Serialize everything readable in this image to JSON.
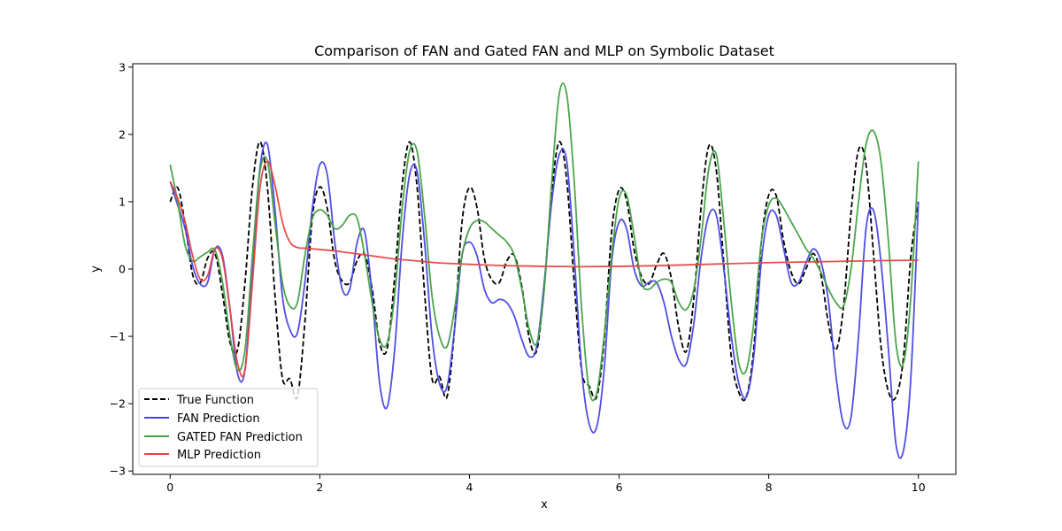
{
  "chart_data": {
    "type": "line",
    "title": "Comparison of FAN and Gated FAN and MLP on Symbolic Dataset",
    "xlabel": "x",
    "ylabel": "y",
    "xlim": [
      -0.5,
      10.5
    ],
    "ylim": [
      -3.05,
      3.05
    ],
    "xticks": [
      0,
      2,
      4,
      6,
      8,
      10
    ],
    "xtick_labels": [
      "0",
      "2",
      "4",
      "6",
      "8",
      "10"
    ],
    "yticks": [
      -3,
      -2,
      -1,
      0,
      1,
      2,
      3
    ],
    "ytick_labels": [
      "−3",
      "−2",
      "−1",
      "0",
      "1",
      "2",
      "3"
    ],
    "grid": false,
    "legend_position": "lower-left",
    "series": [
      {
        "name": "True Function",
        "color": "#000000",
        "dash": "dashed",
        "x": [
          0,
          0.1,
          0.2,
          0.3,
          0.4,
          0.5,
          0.6,
          0.7,
          0.8,
          0.9,
          1.0,
          1.1,
          1.2,
          1.3,
          1.4,
          1.5,
          1.6,
          1.7,
          1.8,
          1.9,
          2.0,
          2.1,
          2.2,
          2.3,
          2.4,
          2.5,
          2.6,
          2.7,
          2.8,
          2.9,
          3.0,
          3.1,
          3.2,
          3.3,
          3.4,
          3.5,
          3.6,
          3.7,
          3.8,
          3.9,
          4.0,
          4.1,
          4.2,
          4.3,
          4.4,
          4.5,
          4.6,
          4.7,
          4.8,
          4.9,
          5.0,
          5.1,
          5.2,
          5.3,
          5.4,
          5.5,
          5.6,
          5.7,
          5.8,
          5.9,
          6.0,
          6.1,
          6.2,
          6.3,
          6.4,
          6.5,
          6.6,
          6.7,
          6.8,
          6.9,
          7.0,
          7.1,
          7.2,
          7.3,
          7.4,
          7.5,
          7.6,
          7.7,
          7.8,
          7.9,
          8.0,
          8.1,
          8.2,
          8.3,
          8.4,
          8.5,
          8.6,
          8.7,
          8.8,
          8.9,
          9.0,
          9.1,
          9.2,
          9.3,
          9.4,
          9.5,
          9.6,
          9.7,
          9.8,
          9.9,
          10.0
        ],
        "values": [
          1.0,
          1.21,
          0.67,
          -0.08,
          -0.21,
          0.16,
          0.23,
          -0.37,
          -1.09,
          -1.2,
          -0.2,
          1.22,
          1.89,
          1.21,
          -0.38,
          -1.62,
          -1.63,
          -1.9,
          -0.8,
          0.77,
          1.22,
          0.9,
          0.12,
          -0.18,
          -0.2,
          0.13,
          0.22,
          -0.3,
          -1.1,
          -1.18,
          -0.13,
          1.24,
          1.89,
          1.22,
          -0.35,
          -1.63,
          -1.6,
          -1.9,
          -0.9,
          0.69,
          1.21,
          0.92,
          0.15,
          -0.16,
          -0.2,
          0.12,
          0.2,
          -0.26,
          -1.03,
          -1.21,
          -0.25,
          1.15,
          1.89,
          1.32,
          -0.2,
          -1.51,
          -1.74,
          -1.9,
          -1.07,
          0.55,
          1.18,
          1.02,
          0.29,
          -0.11,
          -0.22,
          0.06,
          0.23,
          -0.15,
          -0.89,
          -1.22,
          -0.42,
          0.97,
          1.83,
          1.46,
          0.07,
          -1.31,
          -1.83,
          -1.9,
          -1.18,
          0.39,
          1.1,
          1.09,
          0.41,
          -0.05,
          -0.22,
          0.01,
          0.23,
          -0.1,
          -0.82,
          -1.2,
          -0.55,
          0.84,
          1.77,
          1.55,
          0.23,
          -1.15,
          -1.82,
          -1.9,
          -1.32,
          0.19,
          1.0
        ]
      },
      {
        "name": "FAN Prediction",
        "color": "#4444e6",
        "dash": "solid",
        "x": [
          0,
          0.1,
          0.2,
          0.3,
          0.4,
          0.5,
          0.6,
          0.7,
          0.8,
          0.9,
          1.0,
          1.1,
          1.2,
          1.3,
          1.4,
          1.5,
          1.6,
          1.7,
          1.8,
          1.9,
          2.0,
          2.1,
          2.2,
          2.3,
          2.4,
          2.5,
          2.6,
          2.7,
          2.8,
          2.9,
          3.0,
          3.1,
          3.2,
          3.3,
          3.4,
          3.5,
          3.6,
          3.7,
          3.8,
          3.9,
          4.0,
          4.1,
          4.2,
          4.3,
          4.4,
          4.5,
          4.6,
          4.7,
          4.8,
          4.9,
          5.0,
          5.1,
          5.2,
          5.3,
          5.4,
          5.5,
          5.6,
          5.7,
          5.8,
          5.9,
          6.0,
          6.1,
          6.2,
          6.3,
          6.4,
          6.5,
          6.6,
          6.7,
          6.8,
          6.9,
          7.0,
          7.1,
          7.2,
          7.3,
          7.4,
          7.5,
          7.6,
          7.7,
          7.8,
          7.9,
          8.0,
          8.1,
          8.2,
          8.3,
          8.4,
          8.5,
          8.6,
          8.7,
          8.8,
          8.9,
          9.0,
          9.1,
          9.2,
          9.3,
          9.4,
          9.5,
          9.6,
          9.7,
          9.8,
          9.9,
          10.0
        ],
        "values": [
          1.3,
          0.95,
          0.6,
          0.05,
          -0.22,
          -0.2,
          0.3,
          0.2,
          -0.6,
          -1.55,
          -1.5,
          0.0,
          1.5,
          1.85,
          0.9,
          -0.4,
          -0.9,
          -0.95,
          -0.2,
          0.9,
          1.55,
          1.4,
          0.4,
          -0.3,
          -0.3,
          0.4,
          0.55,
          -0.4,
          -1.7,
          -2.05,
          -1.2,
          0.4,
          1.4,
          1.45,
          0.4,
          -1.0,
          -1.7,
          -1.75,
          -0.9,
          0.2,
          0.4,
          0.2,
          -0.3,
          -0.5,
          -0.45,
          -0.5,
          -0.7,
          -1.05,
          -1.3,
          -1.15,
          -0.2,
          1.0,
          1.7,
          1.6,
          0.2,
          -1.5,
          -2.3,
          -2.35,
          -1.5,
          0.1,
          0.7,
          0.6,
          0.0,
          -0.25,
          -0.2,
          -0.2,
          -0.5,
          -1.0,
          -1.35,
          -1.4,
          -0.8,
          0.2,
          0.8,
          0.8,
          0.0,
          -1.0,
          -1.7,
          -1.9,
          -1.3,
          0.1,
          0.8,
          0.8,
          0.3,
          -0.2,
          -0.2,
          0.1,
          0.3,
          0.1,
          -0.5,
          -1.6,
          -2.3,
          -2.2,
          -1.0,
          0.6,
          0.87,
          0.1,
          -1.2,
          -2.6,
          -2.7,
          -1.6,
          1.0
        ]
      },
      {
        "name": "GATED FAN Prediction",
        "color": "#43a043",
        "dash": "solid",
        "x": [
          0,
          0.1,
          0.2,
          0.3,
          0.4,
          0.5,
          0.6,
          0.7,
          0.8,
          0.9,
          1.0,
          1.1,
          1.2,
          1.3,
          1.4,
          1.5,
          1.6,
          1.7,
          1.8,
          1.9,
          2.0,
          2.1,
          2.2,
          2.3,
          2.4,
          2.5,
          2.6,
          2.7,
          2.8,
          2.9,
          3.0,
          3.1,
          3.2,
          3.3,
          3.4,
          3.5,
          3.6,
          3.7,
          3.8,
          3.9,
          4.0,
          4.1,
          4.2,
          4.3,
          4.4,
          4.5,
          4.6,
          4.7,
          4.8,
          4.9,
          5.0,
          5.1,
          5.2,
          5.3,
          5.4,
          5.5,
          5.6,
          5.7,
          5.8,
          5.9,
          6.0,
          6.1,
          6.2,
          6.3,
          6.4,
          6.5,
          6.6,
          6.7,
          6.8,
          6.9,
          7.0,
          7.1,
          7.2,
          7.3,
          7.4,
          7.5,
          7.6,
          7.7,
          7.8,
          7.9,
          8.0,
          8.1,
          8.2,
          8.3,
          8.4,
          8.5,
          8.6,
          8.7,
          8.8,
          8.9,
          9.0,
          9.1,
          9.2,
          9.3,
          9.4,
          9.5,
          9.6,
          9.7,
          9.8,
          9.9,
          10.0
        ],
        "values": [
          1.55,
          1.0,
          0.35,
          0.12,
          0.18,
          0.25,
          0.28,
          -0.2,
          -1.0,
          -1.5,
          -1.2,
          0.2,
          1.45,
          1.6,
          0.7,
          -0.2,
          -0.55,
          -0.5,
          0.2,
          0.75,
          0.88,
          0.8,
          0.6,
          0.65,
          0.8,
          0.75,
          0.2,
          -0.5,
          -1.05,
          -1.1,
          -0.4,
          0.9,
          1.75,
          1.75,
          0.8,
          -0.4,
          -1.0,
          -1.15,
          -0.6,
          0.2,
          0.6,
          0.72,
          0.7,
          0.6,
          0.5,
          0.4,
          0.2,
          -0.3,
          -0.9,
          -1.1,
          -0.3,
          1.3,
          2.6,
          2.6,
          1.3,
          -0.6,
          -1.8,
          -1.85,
          -1.0,
          0.2,
          1.05,
          1.1,
          0.5,
          -0.2,
          -0.3,
          -0.2,
          -0.15,
          -0.2,
          -0.5,
          -0.6,
          -0.3,
          0.5,
          1.5,
          1.7,
          0.7,
          -0.5,
          -1.4,
          -1.5,
          -0.8,
          0.4,
          0.95,
          1.05,
          0.9,
          0.7,
          0.5,
          0.3,
          0.15,
          -0.05,
          -0.3,
          -0.5,
          -0.55,
          0.0,
          1.0,
          1.85,
          2.05,
          1.6,
          0.4,
          -1.1,
          -1.4,
          -0.4,
          1.6
        ]
      },
      {
        "name": "MLP Prediction",
        "color": "#e64444",
        "dash": "solid",
        "x": [
          0,
          0.1,
          0.2,
          0.3,
          0.4,
          0.5,
          0.6,
          0.7,
          0.8,
          0.9,
          1.0,
          1.1,
          1.2,
          1.3,
          1.4,
          1.5,
          1.6,
          1.7,
          1.8,
          1.9,
          2.0,
          2.2,
          2.4,
          2.6,
          2.8,
          3.0,
          3.2,
          3.4,
          3.6,
          3.8,
          4.0,
          4.5,
          5.0,
          5.5,
          6.0,
          6.5,
          7.0,
          7.5,
          8.0,
          8.5,
          9.0,
          9.5,
          10.0
        ],
        "values": [
          1.3,
          1.05,
          0.7,
          0.2,
          -0.15,
          -0.1,
          0.3,
          0.15,
          -0.6,
          -1.4,
          -1.5,
          -0.2,
          1.2,
          1.6,
          1.25,
          0.7,
          0.4,
          0.32,
          0.31,
          0.3,
          0.29,
          0.27,
          0.24,
          0.21,
          0.18,
          0.15,
          0.13,
          0.11,
          0.09,
          0.08,
          0.07,
          0.05,
          0.04,
          0.035,
          0.04,
          0.05,
          0.065,
          0.08,
          0.095,
          0.105,
          0.115,
          0.125,
          0.13
        ]
      }
    ]
  }
}
